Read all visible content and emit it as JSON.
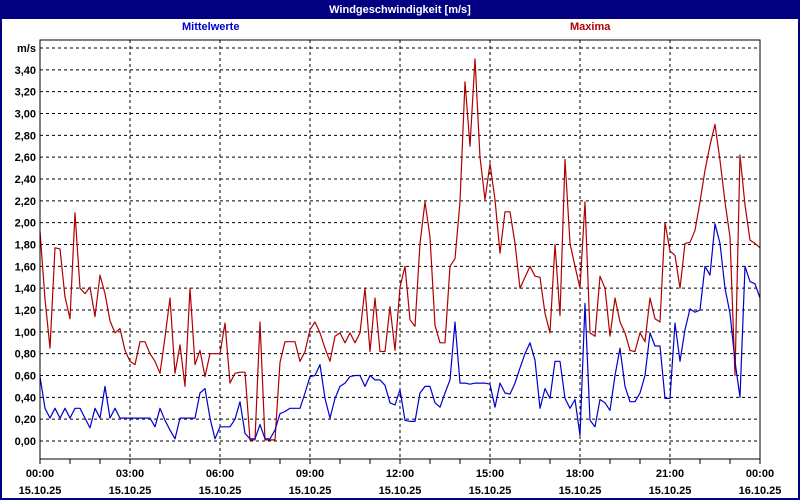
{
  "window": {
    "title": "Windgeschwindigkeit [m/s]"
  },
  "legend": {
    "mean_label": "Mittelwerte",
    "max_label": "Maxima"
  },
  "colors": {
    "frame": "#000080",
    "titlebar_bg": "#000080",
    "titlebar_text": "#ffffff",
    "mean_line": "#0000cc",
    "max_line": "#b00000",
    "grid": "#000000",
    "plot_bg": "#ffffff",
    "label_text": "#000000"
  },
  "y_axis": {
    "unit_label": "m/s",
    "tick_labels": [
      "0,00",
      "0,20",
      "0,40",
      "0,60",
      "0,80",
      "1,00",
      "1,20",
      "1,40",
      "1,60",
      "1,80",
      "2,00",
      "2,20",
      "2,40",
      "2,60",
      "2,80",
      "3,00",
      "3,20",
      "3,40"
    ],
    "min": 0,
    "max": 3.6,
    "step": 0.2
  },
  "x_axis": {
    "labels": [
      {
        "time": "00:00",
        "date": "15.10.25"
      },
      {
        "time": "03:00",
        "date": "15.10.25"
      },
      {
        "time": "06:00",
        "date": "15.10.25"
      },
      {
        "time": "09:00",
        "date": "15.10.25"
      },
      {
        "time": "12:00",
        "date": "15.10.25"
      },
      {
        "time": "15:00",
        "date": "15.10.25"
      },
      {
        "time": "18:00",
        "date": "15.10.25"
      },
      {
        "time": "21:00",
        "date": "15.10.25"
      },
      {
        "time": "00:00",
        "date": "16.10.25"
      }
    ],
    "label_interval_hours": 3,
    "minor_tick_hours": 1,
    "total_hours": 24
  },
  "chart_data": {
    "type": "line",
    "title": "Windgeschwindigkeit [m/s]",
    "ylabel": "m/s",
    "ylim": [
      0,
      3.6
    ],
    "grid": "dashed",
    "x_start": "15.10.25 00:00",
    "x_end": "16.10.25 00:00",
    "interval_minutes": 10,
    "series": [
      {
        "name": "Maxima",
        "color": "#b00000",
        "values": [
          1.92,
          1.3,
          0.85,
          1.77,
          1.76,
          1.32,
          1.12,
          2.09,
          1.4,
          1.35,
          1.41,
          1.14,
          1.52,
          1.35,
          1.1,
          0.99,
          1.03,
          0.83,
          0.73,
          0.7,
          0.91,
          0.91,
          0.8,
          0.73,
          0.62,
          0.95,
          1.31,
          0.62,
          0.88,
          0.5,
          1.4,
          0.7,
          0.83,
          0.59,
          0.8,
          0.8,
          0.8,
          1.08,
          0.53,
          0.62,
          0.63,
          0.63,
          0.01,
          0.01,
          1.09,
          0.01,
          0.01,
          0.01,
          0.72,
          0.91,
          0.91,
          0.91,
          0.73,
          0.82,
          1.02,
          1.09,
          0.99,
          0.85,
          0.73,
          0.96,
          0.99,
          0.9,
          0.99,
          0.9,
          0.99,
          1.4,
          0.82,
          1.31,
          0.82,
          0.82,
          1.23,
          0.83,
          1.41,
          1.6,
          1.11,
          1.05,
          1.81,
          2.19,
          1.87,
          1.06,
          0.9,
          0.9,
          1.6,
          1.67,
          2.19,
          3.29,
          2.7,
          3.5,
          2.6,
          2.21,
          2.54,
          2.21,
          1.72,
          2.1,
          2.1,
          1.81,
          1.4,
          1.5,
          1.6,
          1.51,
          1.5,
          1.17,
          0.99,
          1.8,
          1.15,
          2.58,
          1.81,
          1.6,
          1.4,
          2.19,
          0.99,
          0.96,
          1.51,
          1.4,
          0.96,
          1.31,
          1.09,
          0.99,
          0.83,
          0.82,
          0.99,
          0.91,
          1.31,
          1.12,
          1.09,
          2.0,
          1.74,
          1.7,
          1.4,
          1.81,
          1.82,
          1.93,
          2.19,
          2.48,
          2.71,
          2.9,
          2.57,
          2.19,
          1.87,
          0.6,
          2.62,
          2.16,
          1.84,
          1.81,
          1.77
        ]
      },
      {
        "name": "Mittelwerte",
        "color": "#0000cc",
        "values": [
          0.59,
          0.3,
          0.21,
          0.3,
          0.21,
          0.3,
          0.21,
          0.3,
          0.3,
          0.21,
          0.12,
          0.3,
          0.21,
          0.5,
          0.21,
          0.3,
          0.21,
          0.21,
          0.21,
          0.21,
          0.21,
          0.21,
          0.21,
          0.13,
          0.3,
          0.19,
          0.1,
          0.02,
          0.21,
          0.21,
          0.21,
          0.21,
          0.44,
          0.48,
          0.21,
          0.02,
          0.13,
          0.13,
          0.13,
          0.2,
          0.36,
          0.07,
          0.02,
          0.02,
          0.15,
          0.02,
          0.02,
          0.1,
          0.25,
          0.27,
          0.3,
          0.3,
          0.3,
          0.44,
          0.59,
          0.6,
          0.7,
          0.39,
          0.21,
          0.39,
          0.5,
          0.53,
          0.59,
          0.6,
          0.6,
          0.5,
          0.6,
          0.56,
          0.56,
          0.51,
          0.35,
          0.33,
          0.47,
          0.19,
          0.18,
          0.18,
          0.44,
          0.5,
          0.5,
          0.35,
          0.31,
          0.44,
          0.56,
          1.09,
          0.53,
          0.53,
          0.52,
          0.53,
          0.53,
          0.53,
          0.52,
          0.31,
          0.53,
          0.44,
          0.43,
          0.53,
          0.67,
          0.8,
          0.9,
          0.74,
          0.3,
          0.48,
          0.39,
          0.73,
          0.73,
          0.39,
          0.3,
          0.38,
          0.05,
          1.26,
          0.19,
          0.13,
          0.38,
          0.35,
          0.28,
          0.6,
          0.85,
          0.5,
          0.36,
          0.36,
          0.44,
          0.6,
          0.99,
          0.87,
          0.87,
          0.39,
          0.39,
          1.08,
          0.73,
          1.02,
          1.21,
          1.18,
          1.2,
          1.6,
          1.52,
          1.99,
          1.81,
          1.4,
          1.17,
          0.73,
          0.4,
          1.6,
          1.46,
          1.44,
          1.31
        ]
      }
    ]
  }
}
